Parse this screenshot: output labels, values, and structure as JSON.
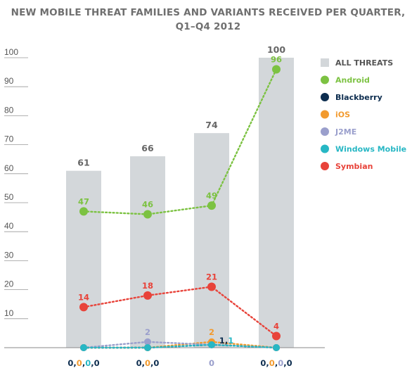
{
  "chart_data": {
    "type": "bar",
    "title_line1": "NEW MOBILE THREAT FAMILIES AND VARIANTS RECEIVED PER QUARTER,",
    "title_line2": "Q1–Q4 2012",
    "ylim": [
      0,
      100
    ],
    "yticks": [
      "10",
      "20",
      "30",
      "40",
      "50",
      "60",
      "70",
      "80",
      "90",
      "100"
    ],
    "bars": {
      "name": "ALL THREATS",
      "color": "#d3d7da",
      "values": [
        61,
        66,
        74,
        100
      ],
      "labels": [
        "61",
        "66",
        "74",
        "100"
      ]
    },
    "series": [
      {
        "name": "Android",
        "color": "#7cc242",
        "values": [
          47,
          46,
          49,
          96
        ],
        "labels": [
          "47",
          "46",
          "49",
          "96"
        ]
      },
      {
        "name": "Blackberry",
        "color": "#0d2d4f",
        "values": [
          0,
          0,
          1,
          0
        ],
        "labels": [
          "",
          "",
          "",
          ""
        ]
      },
      {
        "name": "iOS",
        "color": "#f29a2e",
        "values": [
          0,
          0,
          2,
          0
        ],
        "labels": [
          "",
          "",
          "2",
          ""
        ]
      },
      {
        "name": "J2ME",
        "color": "#9a9fcc",
        "values": [
          0,
          2,
          1,
          0
        ],
        "labels": [
          "",
          "2",
          "",
          ""
        ]
      },
      {
        "name": "Windows Mobile",
        "color": "#27b7c4",
        "values": [
          0,
          0,
          1,
          0
        ],
        "labels": [
          "",
          "",
          "",
          ""
        ]
      },
      {
        "name": "Symbian",
        "color": "#e8433a",
        "values": [
          14,
          18,
          21,
          4
        ],
        "labels": [
          "14",
          "18",
          "21",
          "4"
        ]
      }
    ],
    "extra_labels": [
      {
        "group": 2,
        "parts": [
          {
            "text": "1",
            "color": "#0d2d4f"
          },
          {
            "text": ",",
            "color": "#0d2d4f"
          },
          {
            "text": "1",
            "color": "#27b7c4"
          }
        ]
      }
    ],
    "x_labels": [
      {
        "parts": [
          {
            "text": "0",
            "color": "#0d2d4f"
          },
          {
            "text": ",",
            "color": "#0d2d4f"
          },
          {
            "text": "0",
            "color": "#f29a2e"
          },
          {
            "text": ",",
            "color": "#0d2d4f"
          },
          {
            "text": "0",
            "color": "#27b7c4"
          },
          {
            "text": ",",
            "color": "#0d2d4f"
          },
          {
            "text": "0",
            "color": "#0d2d4f"
          }
        ]
      },
      {
        "parts": [
          {
            "text": "0",
            "color": "#0d2d4f"
          },
          {
            "text": ",",
            "color": "#0d2d4f"
          },
          {
            "text": "0",
            "color": "#f29a2e"
          },
          {
            "text": ",",
            "color": "#0d2d4f"
          },
          {
            "text": "0",
            "color": "#0d2d4f"
          }
        ]
      },
      {
        "parts": [
          {
            "text": "0",
            "color": "#9a9fcc"
          }
        ]
      },
      {
        "parts": [
          {
            "text": "0",
            "color": "#0d2d4f"
          },
          {
            "text": ",",
            "color": "#0d2d4f"
          },
          {
            "text": "0",
            "color": "#f29a2e"
          },
          {
            "text": ",",
            "color": "#0d2d4f"
          },
          {
            "text": "0",
            "color": "#9a9fcc"
          },
          {
            "text": ",",
            "color": "#0d2d4f"
          },
          {
            "text": "0",
            "color": "#0d2d4f"
          }
        ]
      }
    ],
    "legend_placement": "right",
    "grid": false
  }
}
